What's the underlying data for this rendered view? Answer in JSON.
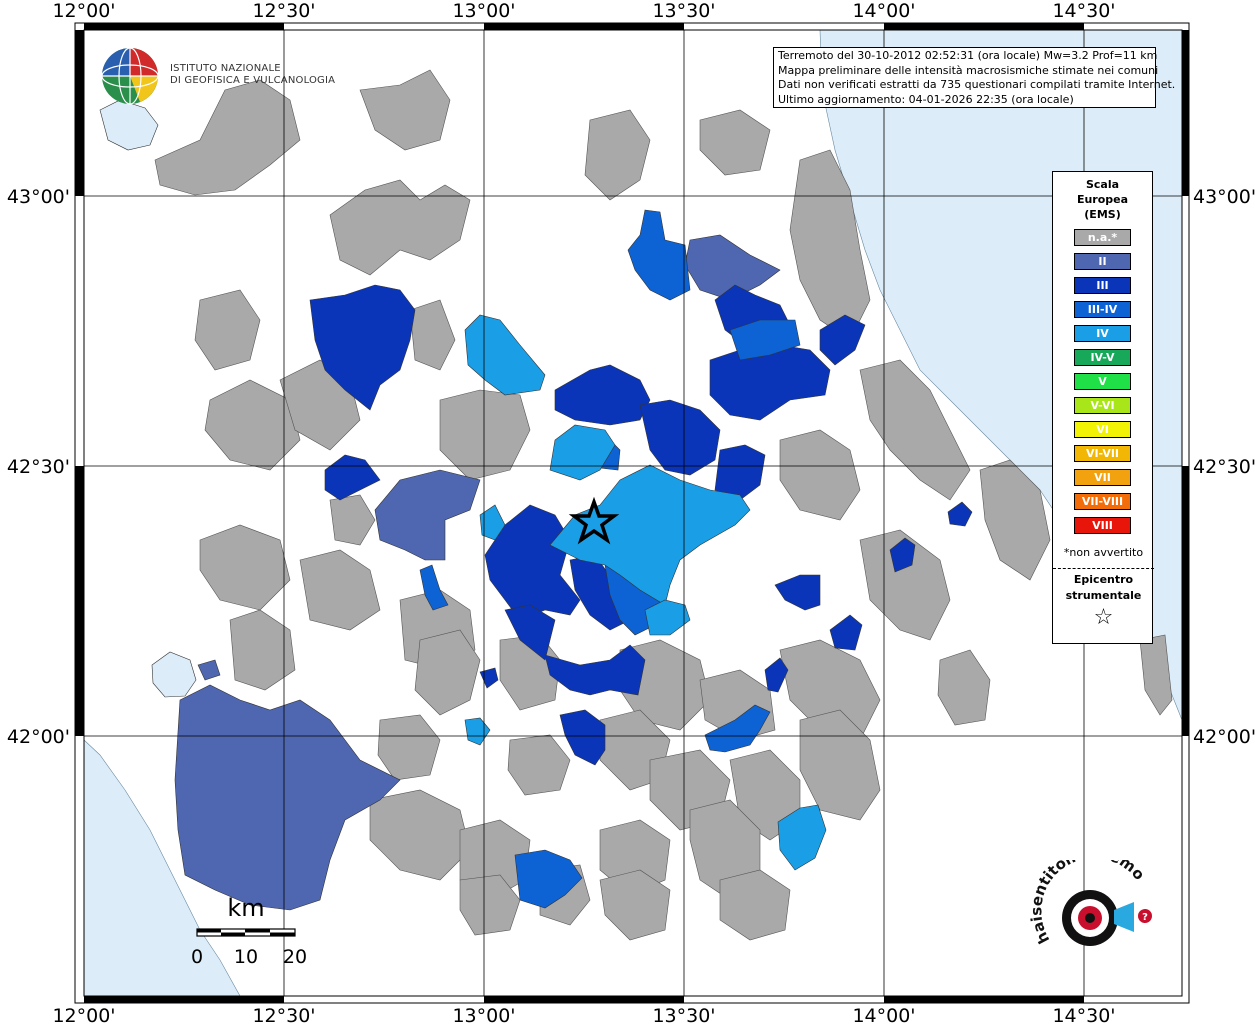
{
  "info": {
    "lines": [
      "Terremoto del 30-10-2012 02:52:31 (ora locale) Mw=3.2 Prof=11 km",
      "Mappa preliminare delle intensità macrosismiche stimate nei comuni",
      "Dati non verificati estratti da 735 questionari compilati tramite Internet.",
      "Ultimo aggiornamento: 04-01-2026 22:35 (ora locale)"
    ]
  },
  "axes": {
    "top_ticks": [
      "12°00'",
      "12°30'",
      "13°00'",
      "13°30'",
      "14°00'",
      "14°30'"
    ],
    "bottom_ticks": [
      "12°00'",
      "12°30'",
      "13°00'",
      "13°30'",
      "14°00'",
      "14°30'"
    ],
    "left_ticks": [
      "43°00'",
      "42°30'",
      "42°00'"
    ],
    "right_ticks": [
      "43°00'",
      "42°30'",
      "42°00'"
    ]
  },
  "legend": {
    "title_lines": [
      "Scala",
      "Europea",
      "(EMS)"
    ],
    "items": [
      {
        "label": "n.a.*",
        "color": "#a9a9a9"
      },
      {
        "label": "II",
        "color": "#4f67b0"
      },
      {
        "label": "III",
        "color": "#0a35b8"
      },
      {
        "label": "III-IV",
        "color": "#0d62d4"
      },
      {
        "label": "IV",
        "color": "#1a9fe6"
      },
      {
        "label": "IV-V",
        "color": "#18a85a"
      },
      {
        "label": "V",
        "color": "#1fe046"
      },
      {
        "label": "V-VI",
        "color": "#a8e619"
      },
      {
        "label": "VI",
        "color": "#f2f205"
      },
      {
        "label": "VI-VII",
        "color": "#f2b705"
      },
      {
        "label": "VII",
        "color": "#f2a20f"
      },
      {
        "label": "VII-VIII",
        "color": "#f26c0a"
      },
      {
        "label": "VIII",
        "color": "#e8150a"
      }
    ],
    "note": "*non avvertito",
    "epicenter_lines": [
      "Epicentro",
      "strumentale"
    ],
    "epicenter_symbol": "☆"
  },
  "scale_bar": {
    "unit": "km",
    "labels": [
      "0",
      "10",
      "20"
    ]
  },
  "logos": {
    "ingv": [
      "ISTITUTO NAZIONALE",
      "DI GEOFISICA E VULCANOLOGIA"
    ],
    "hsit": "haisentitoilterremoto.it www."
  },
  "colors": {
    "sea": "#dcedf9",
    "land_na": "#a9a9a9",
    "border": "#333333"
  }
}
